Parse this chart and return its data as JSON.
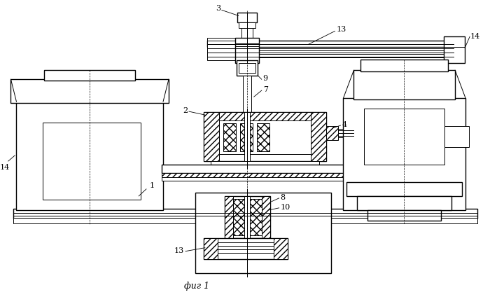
{
  "title": "фиг 1",
  "bg_color": "#ffffff",
  "line_color": "#000000"
}
